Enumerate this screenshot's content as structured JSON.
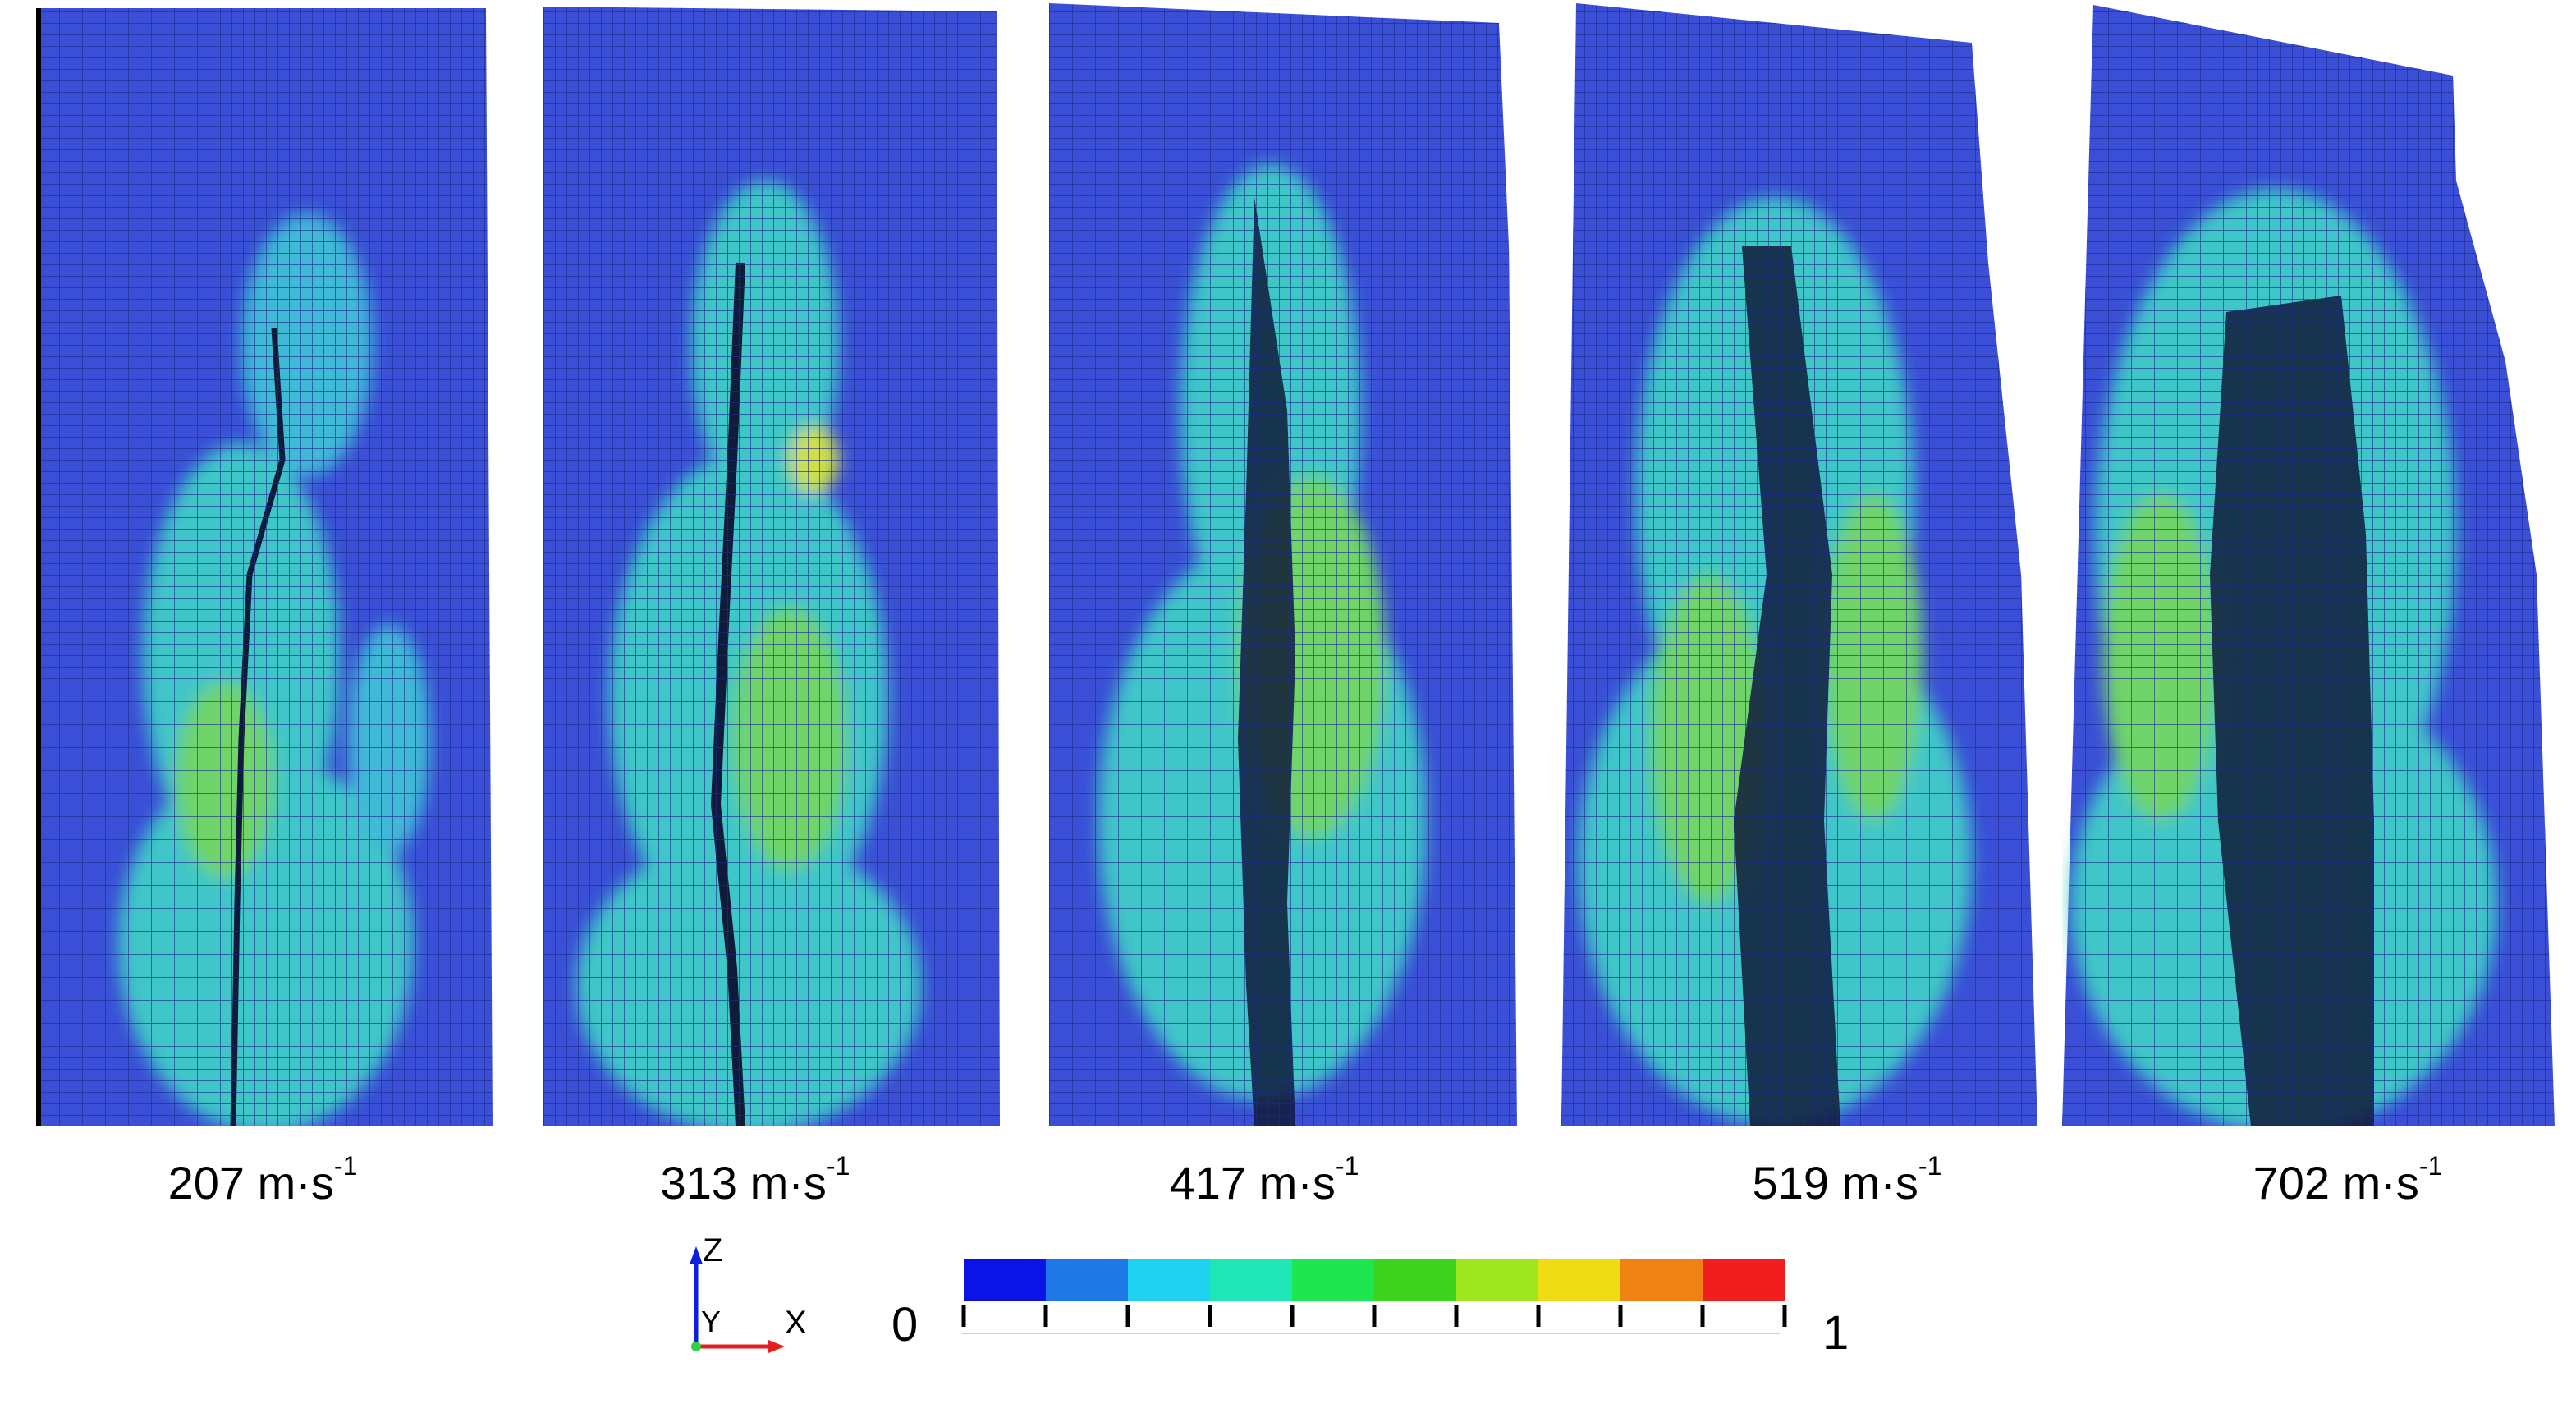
{
  "panels": [
    {
      "id": "p1",
      "speed_label": "207 m·s",
      "exponent": "-1"
    },
    {
      "id": "p2",
      "speed_label": "313 m·s",
      "exponent": "-1"
    },
    {
      "id": "p3",
      "speed_label": "417 m·s",
      "exponent": "-1"
    },
    {
      "id": "p4",
      "speed_label": "519 m·s",
      "exponent": "-1"
    },
    {
      "id": "p5",
      "speed_label": "702 m·s",
      "exponent": "-1"
    }
  ],
  "axes": {
    "z": "Z",
    "y": "Y",
    "x": "X"
  },
  "colorbar": {
    "min_label": "0",
    "max_label": "1",
    "colors": [
      "#0a14e6",
      "#1e78e6",
      "#1ed2f0",
      "#1ee6b4",
      "#1ee650",
      "#3cd21e",
      "#a0e61e",
      "#f0dc14",
      "#f08214",
      "#f01e1e"
    ]
  },
  "colors": {
    "mesh_base": "#3a4fd6",
    "damage_cyan": "#3fd7c8",
    "damage_green": "#5ed36a",
    "fracture": "#101a3a"
  }
}
